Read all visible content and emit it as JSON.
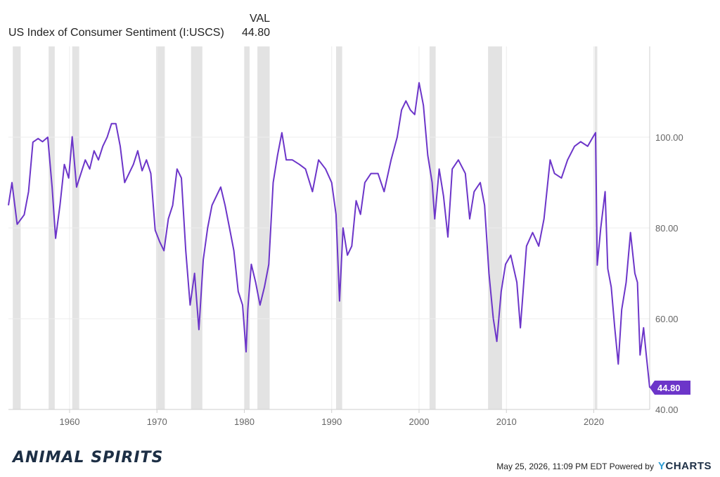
{
  "legend": {
    "column_header": "VAL",
    "series_name": "US Index of Consumer Sentiment (I:USCS)",
    "series_value": "44.80"
  },
  "footer": {
    "brand_left": "ANIMAL SPIRITS",
    "timestamp": "May 25, 2026, 11:09 PM EDT Powered by",
    "logo_y": "Y",
    "logo_rest": "CHARTS"
  },
  "colors": {
    "line": "#6c35c9",
    "recession": "#e3e3e3",
    "grid": "#ececec"
  },
  "chart_data": {
    "type": "line",
    "title": "",
    "xlabel": "",
    "ylabel": "",
    "xlim": [
      1953,
      2026.4
    ],
    "ylim": [
      40,
      120
    ],
    "x_ticks": [
      "1960",
      "1970",
      "1980",
      "1990",
      "2000",
      "2010",
      "2020"
    ],
    "y_ticks": [
      "40.00",
      "60.00",
      "80.00",
      "100.00"
    ],
    "end_label": "44.80",
    "recessions": [
      [
        1953.5,
        1954.4
      ],
      [
        1957.6,
        1958.3
      ],
      [
        1960.3,
        1961.1
      ],
      [
        1969.9,
        1970.9
      ],
      [
        1973.9,
        1975.2
      ],
      [
        1980.0,
        1980.6
      ],
      [
        1981.5,
        1982.9
      ],
      [
        1990.5,
        1991.2
      ],
      [
        2001.2,
        2001.9
      ],
      [
        2007.9,
        2009.5
      ],
      [
        2020.1,
        2020.4
      ]
    ],
    "series": [
      {
        "name": "US Index of Consumer Sentiment (I:USCS)",
        "x": [
          1953.0,
          1953.4,
          1954.0,
          1954.8,
          1955.3,
          1955.8,
          1956.4,
          1956.9,
          1957.5,
          1958.0,
          1958.4,
          1958.9,
          1959.4,
          1959.9,
          1960.3,
          1960.8,
          1961.3,
          1961.8,
          1962.3,
          1962.8,
          1963.3,
          1963.8,
          1964.3,
          1964.8,
          1965.3,
          1965.8,
          1966.3,
          1966.8,
          1967.3,
          1967.8,
          1968.3,
          1968.8,
          1969.3,
          1969.8,
          1970.3,
          1970.8,
          1971.3,
          1971.8,
          1972.3,
          1972.8,
          1973.3,
          1973.8,
          1974.3,
          1974.8,
          1975.3,
          1975.8,
          1976.3,
          1976.8,
          1977.3,
          1977.8,
          1978.3,
          1978.8,
          1979.3,
          1979.8,
          1980.2,
          1980.4,
          1980.8,
          1981.3,
          1981.8,
          1982.3,
          1982.8,
          1983.3,
          1983.8,
          1984.3,
          1984.8,
          1985.5,
          1986.3,
          1987.0,
          1987.8,
          1988.5,
          1989.3,
          1990.0,
          1990.5,
          1990.9,
          1991.3,
          1991.8,
          1992.3,
          1992.8,
          1993.3,
          1993.8,
          1994.5,
          1995.3,
          1996.0,
          1996.8,
          1997.5,
          1998.0,
          1998.5,
          1999.0,
          1999.5,
          2000.0,
          2000.5,
          2001.0,
          2001.5,
          2001.8,
          2002.3,
          2002.8,
          2003.3,
          2003.8,
          2004.5,
          2005.3,
          2005.8,
          2006.3,
          2007.0,
          2007.5,
          2008.0,
          2008.5,
          2008.9,
          2009.4,
          2009.9,
          2010.5,
          2011.2,
          2011.6,
          2012.3,
          2013.0,
          2013.7,
          2014.3,
          2015.0,
          2015.5,
          2016.3,
          2017.0,
          2017.8,
          2018.5,
          2019.3,
          2019.9,
          2020.2,
          2020.4,
          2020.8,
          2021.3,
          2021.6,
          2022.0,
          2022.4,
          2022.8,
          2023.2,
          2023.7,
          2024.2,
          2024.7,
          2025.0,
          2025.3,
          2025.7,
          2026.0,
          2026.4
        ],
        "values": [
          85.0,
          90.0,
          80.8,
          82.9,
          88.0,
          98.9,
          99.7,
          99.0,
          100.0,
          89.0,
          77.7,
          85.0,
          94.0,
          91.0,
          100.1,
          89.0,
          92.0,
          95.0,
          93.0,
          97.0,
          95.0,
          98.0,
          100.0,
          103.0,
          103.0,
          98.0,
          90.0,
          92.0,
          94.0,
          97.0,
          92.6,
          95.0,
          92.0,
          79.5,
          77.0,
          75.0,
          82.0,
          85.0,
          93.0,
          91.0,
          75.0,
          63.0,
          70.0,
          57.6,
          73.0,
          80.0,
          85.0,
          87.0,
          89.0,
          85.0,
          80.0,
          75.0,
          66.0,
          63.0,
          52.7,
          62.0,
          72.0,
          68.0,
          63.0,
          67.0,
          72.0,
          90.0,
          96.0,
          101.0,
          95.0,
          95.0,
          94.0,
          93.0,
          88.0,
          95.0,
          93.0,
          90.0,
          83.0,
          63.9,
          80.0,
          74.0,
          76.0,
          86.0,
          83.0,
          90.0,
          92.0,
          92.0,
          88.0,
          95.0,
          100.0,
          106.0,
          108.0,
          106.0,
          105.0,
          112.0,
          107.0,
          96.0,
          90.0,
          82.0,
          93.0,
          87.0,
          78.0,
          93.0,
          95.0,
          92.0,
          82.0,
          88.0,
          90.0,
          85.0,
          70.0,
          60.0,
          55.0,
          66.0,
          72.0,
          74.0,
          68.0,
          58.0,
          76.0,
          79.0,
          76.0,
          82.0,
          95.0,
          92.0,
          91.0,
          95.0,
          98.0,
          99.0,
          98.0,
          100.0,
          101.0,
          71.8,
          80.0,
          88.0,
          71.0,
          67.0,
          58.0,
          50.0,
          62.0,
          68.0,
          79.0,
          70.0,
          68.0,
          52.0,
          58.0,
          52.2,
          44.8
        ]
      }
    ]
  }
}
